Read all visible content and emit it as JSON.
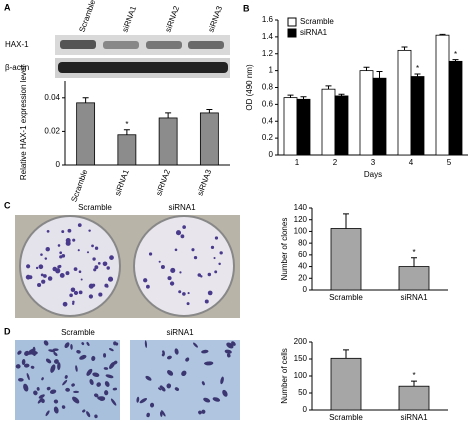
{
  "panel_labels": [
    "A",
    "B",
    "C",
    "D"
  ],
  "blot": {
    "lanes": [
      "Scramble",
      "siRNA1",
      "siRNA2",
      "siRNA3"
    ],
    "rows": [
      "HAX-1",
      "β-actin"
    ]
  },
  "images": {
    "C": [
      "Scramble",
      "siRNA1"
    ],
    "D": [
      "Scramble",
      "siRNA1"
    ]
  },
  "chart_data": [
    {
      "type": "bar",
      "ylabel": "Relative HAX-1 expression level",
      "categories": [
        "Scramble",
        "siRNA1",
        "siRNA2",
        "siRNA3"
      ],
      "series": [
        {
          "name": null,
          "color": "#8c8c8c",
          "values": [
            0.037,
            0.018,
            0.028,
            0.031
          ],
          "errors": [
            0.003,
            0.003,
            0.003,
            0.002
          ]
        }
      ],
      "ylim": [
        0,
        0.05
      ],
      "yticks": [
        0,
        0.02,
        0.04
      ],
      "annotations": [
        "*"
      ]
    },
    {
      "type": "bar",
      "ylabel": "OD (490 nm)",
      "xlabel": "Days",
      "categories": [
        "1",
        "2",
        "3",
        "4",
        "5"
      ],
      "series": [
        {
          "name": "Scramble",
          "color": "#ffffff",
          "values": [
            0.68,
            0.78,
            1.0,
            1.24,
            1.42
          ],
          "errors": [
            0.03,
            0.04,
            0.04,
            0.04,
            0.01
          ]
        },
        {
          "name": "siRNA1",
          "color": "#000000",
          "values": [
            0.66,
            0.7,
            0.91,
            0.93,
            1.11
          ],
          "errors": [
            0.03,
            0.02,
            0.08,
            0.03,
            0.02
          ]
        }
      ],
      "ylim": [
        0,
        1.6
      ],
      "yticks": [
        0,
        0.2,
        0.4,
        0.6,
        0.8,
        1,
        1.2,
        1.4,
        1.6
      ],
      "legend": "upper-left",
      "annotations": [
        "*",
        "*"
      ]
    },
    {
      "type": "bar",
      "ylabel": "Number of clones",
      "categories": [
        "Scramble",
        "siRNA1"
      ],
      "series": [
        {
          "name": null,
          "color": "#a6a6a6",
          "values": [
            105,
            40
          ],
          "errors": [
            25,
            15
          ]
        }
      ],
      "ylim": [
        0,
        140
      ],
      "yticks": [
        0,
        20,
        40,
        60,
        80,
        100,
        120,
        140
      ],
      "annotations": [
        "*"
      ]
    },
    {
      "type": "bar",
      "ylabel": "Number of cells",
      "categories": [
        "Scramble",
        "siRNA1"
      ],
      "series": [
        {
          "name": null,
          "color": "#a6a6a6",
          "values": [
            152,
            70
          ],
          "errors": [
            25,
            15
          ]
        }
      ],
      "ylim": [
        0,
        200
      ],
      "yticks": [
        0,
        50,
        100,
        150,
        200
      ],
      "annotations": [
        "*"
      ]
    }
  ]
}
